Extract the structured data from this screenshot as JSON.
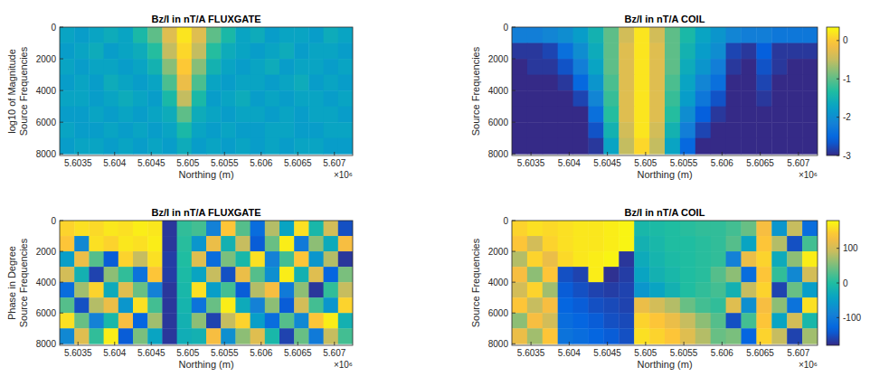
{
  "chart_data": [
    {
      "type": "heatmap",
      "title": "Bz/I in nT/A FLUXGATE",
      "x_label": "Northing (m)",
      "y_label": [
        "log10 of Magnitude",
        "Source Frequencies"
      ],
      "x_scale_label": "×10⁶",
      "x": [
        5603350,
        5603550,
        5603750,
        5603950,
        5604150,
        5604350,
        5604550,
        5604750,
        5604950,
        5605150,
        5605350,
        5605550,
        5605750,
        5605950,
        5606150,
        5606350,
        5606550,
        5606750,
        5606950,
        5607150
      ],
      "y": [
        500,
        1500,
        2500,
        3500,
        4500,
        5500,
        6500,
        7500
      ],
      "values": [
        [
          -1.7,
          -1.8,
          -1.7,
          -1.6,
          -1.7,
          -1.4,
          -1.0,
          -0.3,
          0.2,
          -0.3,
          -1.0,
          -1.4,
          -1.7,
          -1.6,
          -1.8,
          -1.7,
          -1.7,
          -1.8,
          -1.6,
          -1.7
        ],
        [
          -1.8,
          -1.7,
          -1.6,
          -1.8,
          -1.7,
          -1.6,
          -1.3,
          -0.5,
          0.1,
          -0.5,
          -1.3,
          -1.6,
          -1.7,
          -1.8,
          -1.7,
          -1.6,
          -1.8,
          -1.7,
          -1.7,
          -1.8
        ],
        [
          -1.7,
          -1.8,
          -1.7,
          -1.7,
          -1.8,
          -1.7,
          -1.5,
          -0.8,
          0.0,
          -0.8,
          -1.5,
          -1.7,
          -1.8,
          -1.7,
          -1.6,
          -1.8,
          -1.7,
          -1.7,
          -1.8,
          -1.7
        ],
        [
          -1.8,
          -1.7,
          -1.8,
          -1.6,
          -1.7,
          -1.8,
          -1.7,
          -1.1,
          -0.2,
          -1.1,
          -1.7,
          -1.8,
          -1.7,
          -1.7,
          -1.8,
          -1.7,
          -1.6,
          -1.8,
          -1.7,
          -1.8
        ],
        [
          -1.7,
          -1.7,
          -1.8,
          -1.7,
          -1.6,
          -1.7,
          -1.8,
          -1.4,
          -0.5,
          -1.4,
          -1.8,
          -1.7,
          -1.6,
          -1.8,
          -1.7,
          -1.8,
          -1.7,
          -1.7,
          -1.8,
          -1.7
        ],
        [
          -1.8,
          -1.8,
          -1.7,
          -1.8,
          -1.7,
          -1.8,
          -1.7,
          -1.6,
          -1.0,
          -1.6,
          -1.7,
          -1.8,
          -1.7,
          -1.7,
          -1.8,
          -1.7,
          -1.8,
          -1.7,
          -1.7,
          -1.8
        ],
        [
          -1.7,
          -1.8,
          -1.8,
          -1.7,
          -1.8,
          -1.7,
          -1.8,
          -1.7,
          -1.4,
          -1.7,
          -1.8,
          -1.7,
          -1.8,
          -1.8,
          -1.7,
          -1.7,
          -1.8,
          -1.8,
          -1.7,
          -1.7
        ],
        [
          -1.8,
          -1.7,
          -1.7,
          -1.8,
          -1.7,
          -1.8,
          -1.7,
          -1.8,
          -1.6,
          -1.8,
          -1.7,
          -1.8,
          -1.7,
          -1.8,
          -1.7,
          -1.8,
          -1.7,
          -1.7,
          -1.8,
          -1.8
        ]
      ],
      "xlim": [
        5603250,
        5607250
      ],
      "xticks": [
        {
          "value": 5603500,
          "label": "5.6035"
        },
        {
          "value": 5604000,
          "label": "5.604"
        },
        {
          "value": 5604500,
          "label": "5.6045"
        },
        {
          "value": 5605000,
          "label": "5.605"
        },
        {
          "value": 5605500,
          "label": "5.6055"
        },
        {
          "value": 5606000,
          "label": "5.606"
        },
        {
          "value": 5606500,
          "label": "5.6065"
        },
        {
          "value": 5607000,
          "label": "5.607"
        }
      ],
      "ylim": [
        0,
        8100
      ],
      "yticks": [
        0,
        2000,
        4000,
        6000,
        8000
      ],
      "color_range": [
        -3,
        0.35
      ]
    },
    {
      "type": "heatmap",
      "title": "Bz/I in nT/A COIL",
      "x_label": "Northing (m)",
      "y_label": [
        "Source Frequencies"
      ],
      "x_scale_label": "×10⁶",
      "x": [
        5603350,
        5603550,
        5603750,
        5603950,
        5604150,
        5604350,
        5604550,
        5604750,
        5604950,
        5605150,
        5605350,
        5605550,
        5605750,
        5605950,
        5606150,
        5606350,
        5606550,
        5606750,
        5606950,
        5607150
      ],
      "y": [
        500,
        1500,
        2500,
        3500,
        4500,
        5500,
        6500,
        7500
      ],
      "values": [
        [
          -2.2,
          -2.2,
          -2.1,
          -2.0,
          -1.8,
          -1.5,
          -1.0,
          -0.4,
          0.2,
          -0.4,
          -1.0,
          -1.4,
          -1.7,
          -1.9,
          -2.1,
          -2.2,
          -2.2,
          -2.3,
          -2.3,
          -2.3
        ],
        [
          -2.9,
          -2.9,
          -2.8,
          -2.4,
          -2.0,
          -1.6,
          -1.0,
          -0.3,
          0.2,
          -0.3,
          -1.0,
          -1.5,
          -1.8,
          -2.0,
          -2.8,
          -2.9,
          -2.6,
          -2.9,
          -2.9,
          -2.9
        ],
        [
          -3.0,
          -2.9,
          -2.9,
          -2.7,
          -2.2,
          -1.7,
          -1.0,
          -0.3,
          0.2,
          -0.3,
          -1.0,
          -1.6,
          -1.9,
          -2.2,
          -2.9,
          -3.0,
          -2.7,
          -2.9,
          -3.0,
          -3.0
        ],
        [
          -3.0,
          -3.0,
          -3.0,
          -2.9,
          -2.5,
          -1.9,
          -1.1,
          -0.3,
          0.2,
          -0.3,
          -1.1,
          -1.7,
          -2.1,
          -2.4,
          -3.0,
          -3.0,
          -2.8,
          -3.0,
          -3.0,
          -3.0
        ],
        [
          -3.0,
          -3.0,
          -3.0,
          -3.0,
          -2.8,
          -2.1,
          -1.2,
          -0.3,
          0.2,
          -0.3,
          -1.2,
          -1.8,
          -2.3,
          -2.7,
          -3.0,
          -3.0,
          -2.9,
          -3.0,
          -3.0,
          -3.0
        ],
        [
          -3.0,
          -3.0,
          -3.0,
          -3.0,
          -3.0,
          -2.4,
          -1.3,
          -0.3,
          0.2,
          -0.3,
          -1.3,
          -2.0,
          -2.6,
          -2.9,
          -3.0,
          -3.0,
          -3.0,
          -3.0,
          -3.0,
          -3.0
        ],
        [
          -3.0,
          -3.0,
          -3.0,
          -3.0,
          -3.0,
          -2.7,
          -1.5,
          -0.4,
          0.2,
          -0.4,
          -1.5,
          -2.2,
          -2.8,
          -3.0,
          -3.0,
          -3.0,
          -3.0,
          -3.0,
          -3.0,
          -3.0
        ],
        [
          -3.0,
          -3.0,
          -3.0,
          -3.0,
          -3.0,
          -2.9,
          -1.7,
          -0.5,
          0.1,
          -0.5,
          -1.7,
          -2.5,
          -3.0,
          -3.0,
          -3.0,
          -3.0,
          -3.0,
          -3.0,
          -3.0,
          -3.0
        ]
      ],
      "xlim": [
        5603250,
        5607250
      ],
      "xticks": [
        {
          "value": 5603500,
          "label": "5.6035"
        },
        {
          "value": 5604000,
          "label": "5.604"
        },
        {
          "value": 5604500,
          "label": "5.6045"
        },
        {
          "value": 5605000,
          "label": "5.605"
        },
        {
          "value": 5605500,
          "label": "5.6055"
        },
        {
          "value": 5606000,
          "label": "5.606"
        },
        {
          "value": 5606500,
          "label": "5.6065"
        },
        {
          "value": 5607000,
          "label": "5.607"
        }
      ],
      "ylim": [
        0,
        8100
      ],
      "yticks": [
        0,
        2000,
        4000,
        6000,
        8000
      ],
      "color_range": [
        -3,
        0.35
      ],
      "color_ticks": [
        -3,
        -2,
        -1,
        0
      ]
    },
    {
      "type": "heatmap",
      "title": "Bz/I in nT/A FLUXGATE",
      "x_label": "Northing (m)",
      "y_label": [
        "Phase in Degree",
        "Source Frequencies"
      ],
      "x_scale_label": "×10⁶",
      "x": [
        5603350,
        5603550,
        5603750,
        5603950,
        5604150,
        5604350,
        5604550,
        5604750,
        5604950,
        5605150,
        5605350,
        5605550,
        5605750,
        5605950,
        5606150,
        5606350,
        5606550,
        5606750,
        5606950,
        5607150
      ],
      "y": [
        500,
        1500,
        2500,
        3500,
        4500,
        5500,
        6500,
        7500
      ],
      "values": [
        [
          150,
          160,
          155,
          165,
          160,
          170,
          165,
          -170,
          10,
          20,
          -90,
          140,
          30,
          -120,
          80,
          -40,
          160,
          -10,
          100,
          -150
        ],
        [
          140,
          -80,
          160,
          150,
          165,
          160,
          170,
          -170,
          5,
          -60,
          120,
          -20,
          90,
          -140,
          40,
          170,
          -100,
          60,
          -30,
          130
        ],
        [
          -50,
          120,
          30,
          -140,
          150,
          90,
          160,
          -165,
          0,
          110,
          -120,
          50,
          -10,
          160,
          -90,
          20,
          140,
          -60,
          80,
          -170
        ],
        [
          100,
          -20,
          -160,
          60,
          10,
          -110,
          140,
          -165,
          -5,
          -40,
          90,
          -150,
          120,
          30,
          -70,
          170,
          -20,
          110,
          -130,
          50
        ],
        [
          -120,
          70,
          150,
          -30,
          110,
          40,
          -90,
          -170,
          -10,
          160,
          -50,
          20,
          -140,
          80,
          130,
          -100,
          60,
          -170,
          10,
          90
        ],
        [
          30,
          -150,
          80,
          120,
          -60,
          160,
          20,
          -170,
          -15,
          -110,
          40,
          170,
          -30,
          -90,
          60,
          -140,
          100,
          20,
          -60,
          150
        ],
        [
          160,
          40,
          -90,
          -10,
          130,
          -130,
          70,
          -170,
          -20,
          60,
          -160,
          90,
          150,
          -50,
          -120,
          30,
          -80,
          140,
          170,
          -20
        ],
        [
          -80,
          110,
          10,
          170,
          -140,
          50,
          -40,
          -170,
          -25,
          -20,
          130,
          -70,
          60,
          110,
          -10,
          -160,
          40,
          -100,
          90,
          20
        ]
      ],
      "xlim": [
        5603250,
        5607250
      ],
      "xticks": [
        {
          "value": 5603500,
          "label": "5.6035"
        },
        {
          "value": 5604000,
          "label": "5.604"
        },
        {
          "value": 5604500,
          "label": "5.6045"
        },
        {
          "value": 5605000,
          "label": "5.605"
        },
        {
          "value": 5605500,
          "label": "5.6055"
        },
        {
          "value": 5606000,
          "label": "5.606"
        },
        {
          "value": 5606500,
          "label": "5.6065"
        },
        {
          "value": 5607000,
          "label": "5.607"
        }
      ],
      "ylim": [
        0,
        8100
      ],
      "yticks": [
        0,
        2000,
        4000,
        6000,
        8000
      ],
      "color_range": [
        -180,
        180
      ]
    },
    {
      "type": "heatmap",
      "title": "Bz/I in nT/A COIL",
      "x_label": "Northing (m)",
      "y_label": [
        "Source Frequencies"
      ],
      "x_scale_label": "×10⁶",
      "x": [
        5603350,
        5603550,
        5603750,
        5603950,
        5604150,
        5604350,
        5604550,
        5604750,
        5604950,
        5605150,
        5605350,
        5605550,
        5605750,
        5605950,
        5606150,
        5606350,
        5606550,
        5606750,
        5606950,
        5607150
      ],
      "y": [
        500,
        1500,
        2500,
        3500,
        4500,
        5500,
        6500,
        7500
      ],
      "values": [
        [
          150,
          160,
          155,
          160,
          165,
          165,
          170,
          175,
          -10,
          -5,
          0,
          5,
          10,
          10,
          20,
          40,
          130,
          -60,
          90,
          -120
        ],
        [
          140,
          100,
          150,
          160,
          165,
          165,
          170,
          175,
          -20,
          -10,
          0,
          0,
          5,
          10,
          30,
          -40,
          140,
          80,
          -150,
          20
        ],
        [
          80,
          150,
          120,
          155,
          165,
          170,
          175,
          -170,
          -30,
          -15,
          -5,
          0,
          5,
          10,
          -90,
          120,
          150,
          -30,
          60,
          170
        ],
        [
          130,
          60,
          140,
          -150,
          -160,
          170,
          -175,
          -165,
          -40,
          -20,
          -10,
          0,
          5,
          30,
          60,
          -120,
          140,
          10,
          -80,
          100
        ],
        [
          100,
          150,
          70,
          -140,
          -150,
          -160,
          -165,
          -160,
          -60,
          -40,
          -20,
          0,
          10,
          20,
          -20,
          90,
          150,
          -160,
          40,
          -50
        ],
        [
          140,
          90,
          130,
          -130,
          -140,
          -150,
          -155,
          -160,
          120,
          100,
          80,
          40,
          20,
          10,
          110,
          -70,
          130,
          60,
          -110,
          160
        ],
        [
          60,
          130,
          100,
          -120,
          -130,
          -140,
          -150,
          -155,
          150,
          140,
          120,
          90,
          60,
          30,
          -150,
          20,
          140,
          -40,
          100,
          -10
        ],
        [
          120,
          70,
          140,
          -110,
          -120,
          -130,
          -140,
          -150,
          160,
          150,
          140,
          110,
          80,
          40,
          50,
          -130,
          150,
          90,
          -160,
          70
        ]
      ],
      "xlim": [
        5603250,
        5607250
      ],
      "xticks": [
        {
          "value": 5603500,
          "label": "5.6035"
        },
        {
          "value": 5604000,
          "label": "5.604"
        },
        {
          "value": 5604500,
          "label": "5.6045"
        },
        {
          "value": 5605000,
          "label": "5.605"
        },
        {
          "value": 5605500,
          "label": "5.6055"
        },
        {
          "value": 5606000,
          "label": "5.606"
        },
        {
          "value": 5606500,
          "label": "5.6065"
        },
        {
          "value": 5607000,
          "label": "5.607"
        }
      ],
      "ylim": [
        0,
        8100
      ],
      "yticks": [
        0,
        2000,
        4000,
        6000,
        8000
      ],
      "color_range": [
        -180,
        180
      ],
      "color_ticks": [
        -100,
        0,
        100
      ]
    }
  ]
}
